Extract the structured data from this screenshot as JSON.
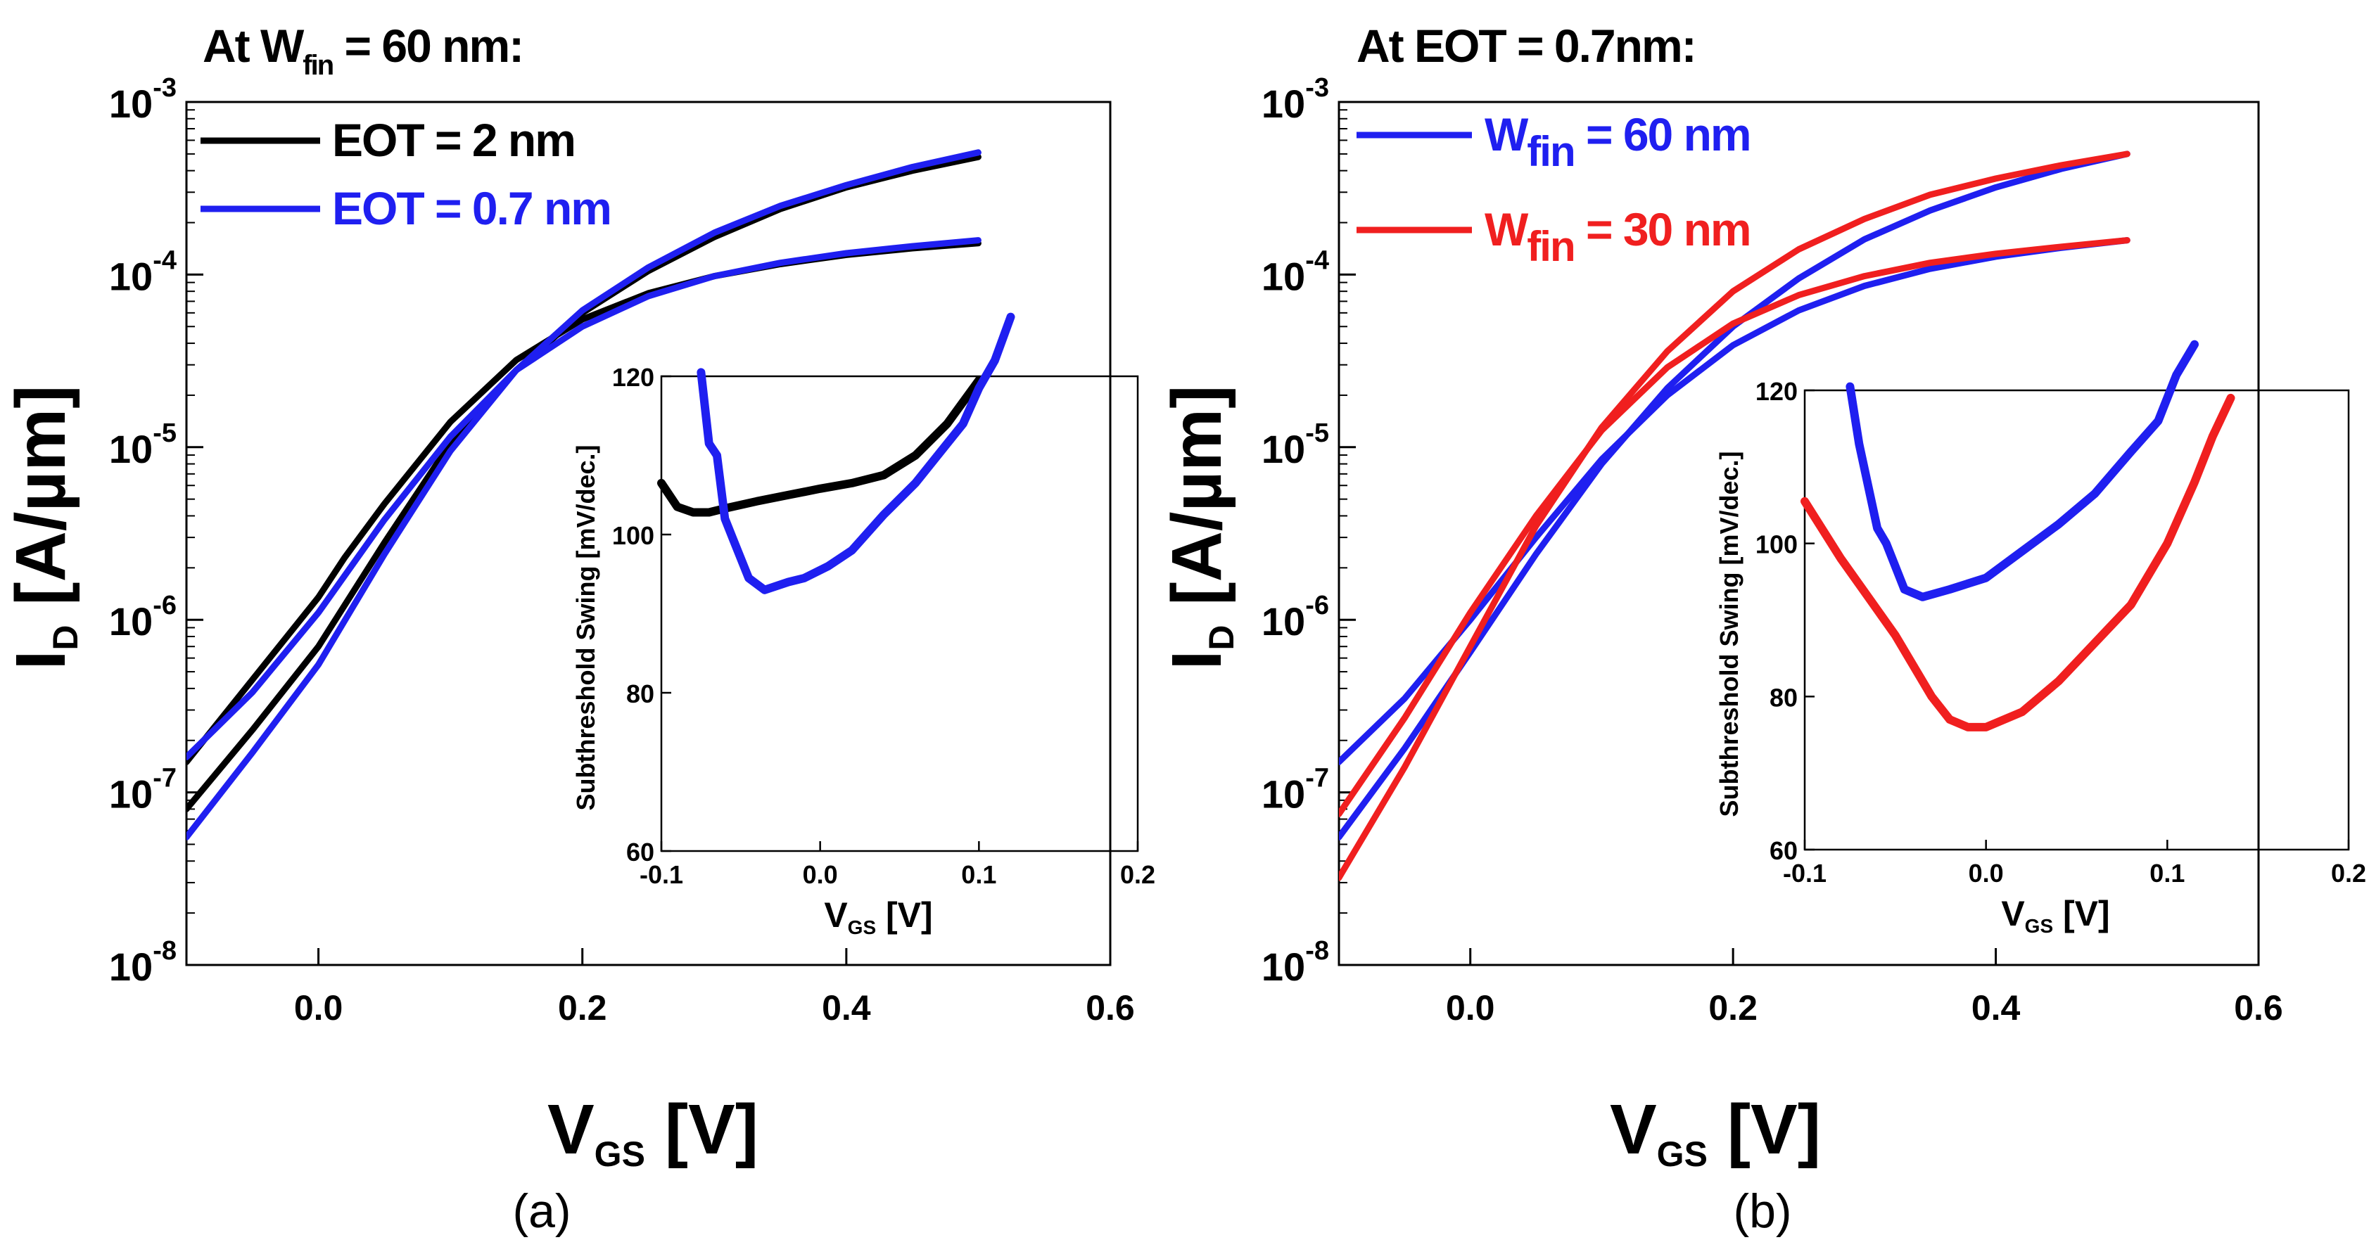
{
  "panels": [
    {
      "caption": "(a)",
      "header": {
        "prefix": "At",
        "var": "W",
        "sub": "fin",
        "rest": "= 60 nm:"
      },
      "chart_data": {
        "type": "line",
        "xlabel": {
          "main": "V",
          "sub": "GS",
          "unit": "[V]"
        },
        "ylabel": {
          "main": "I",
          "sub": "D",
          "unit": "[A/µm]"
        },
        "xlim": [
          -0.1,
          0.6
        ],
        "ylim": [
          1e-08,
          0.001
        ],
        "yscale": "log",
        "xticks": [
          0.0,
          0.2,
          0.4,
          0.6
        ],
        "xtick_labels": [
          "0.0",
          "0.2",
          "0.4",
          "0.6"
        ],
        "yticks": [
          1e-08,
          1e-07,
          1e-06,
          1e-05,
          0.0001,
          0.001
        ],
        "ytick_labels": [
          {
            "base": "10",
            "exp": "-8"
          },
          {
            "base": "10",
            "exp": "-7"
          },
          {
            "base": "10",
            "exp": "-6"
          },
          {
            "base": "10",
            "exp": "-5"
          },
          {
            "base": "10",
            "exp": "-4"
          },
          {
            "base": "10",
            "exp": "-3"
          }
        ],
        "legend_position": "top-left",
        "series": [
          {
            "legend": {
              "main": "EOT = 2 nm",
              "var": "",
              "sub": "",
              "rest": ""
            },
            "color": "#000000",
            "x": [
              -0.1,
              -0.05,
              0,
              0.02,
              0.05,
              0.1,
              0.15,
              0.2,
              0.25,
              0.3,
              0.35,
              0.4,
              0.45,
              0.5
            ],
            "y": [
              1.5e-07,
              4.5e-07,
              1.35e-06,
              2.3e-06,
              4.7e-06,
              1.4e-05,
              3.2e-05,
              5.5e-05,
              7.8e-05,
              9.8e-05,
              0.000115,
              0.00013,
              0.000142,
              0.000152
            ]
          },
          {
            "legend": null,
            "color": "#000000",
            "x": [
              -0.1,
              -0.05,
              0,
              0.05,
              0.1,
              0.15,
              0.2,
              0.25,
              0.3,
              0.35,
              0.4,
              0.45,
              0.5
            ],
            "y": [
              8e-08,
              2.3e-07,
              7e-07,
              2.8e-06,
              1.05e-05,
              2.8e-05,
              6e-05,
              0.000105,
              0.000165,
              0.00024,
              0.00032,
              0.0004,
              0.00048
            ]
          },
          {
            "legend": {
              "main": "EOT = 0.7 nm",
              "var": "",
              "sub": "",
              "rest": ""
            },
            "color": "#1f1ff0",
            "x": [
              -0.1,
              -0.05,
              0,
              0.05,
              0.1,
              0.15,
              0.2,
              0.25,
              0.3,
              0.35,
              0.4,
              0.45,
              0.5
            ],
            "y": [
              1.6e-07,
              3.8e-07,
              1.1e-06,
              3.8e-06,
              1.15e-05,
              2.8e-05,
              5e-05,
              7.5e-05,
              9.8e-05,
              0.000117,
              0.000133,
              0.000146,
              0.000158
            ]
          },
          {
            "legend": null,
            "color": "#1f1ff0",
            "x": [
              -0.1,
              -0.05,
              0,
              0.05,
              0.1,
              0.15,
              0.2,
              0.25,
              0.3,
              0.35,
              0.4,
              0.45,
              0.5
            ],
            "y": [
              5.5e-08,
              1.7e-07,
              5.5e-07,
              2.4e-06,
              9.5e-06,
              2.8e-05,
              6.2e-05,
              0.00011,
              0.000175,
              0.00025,
              0.00033,
              0.00042,
              0.00051
            ]
          }
        ]
      },
      "inset": {
        "chart_data": {
          "type": "line",
          "xlabel": {
            "main": "V",
            "sub": "GS",
            "unit": "[V]"
          },
          "ylabel": "Subthreshold Swing [mV/dec.]",
          "xlim": [
            -0.1,
            0.2
          ],
          "ylim": [
            60,
            120
          ],
          "xticks": [
            -0.1,
            0.0,
            0.1,
            0.2
          ],
          "xtick_labels": [
            "-0.1",
            "0.0",
            "0.1",
            "0.2"
          ],
          "yticks": [
            60,
            80,
            100,
            120
          ],
          "ytick_labels": [
            "60",
            "80",
            "100",
            "120"
          ],
          "series": [
            {
              "color": "#000000",
              "x": [
                -0.1,
                -0.09,
                -0.08,
                -0.07,
                -0.06,
                -0.04,
                -0.02,
                0,
                0.02,
                0.04,
                0.06,
                0.08,
                0.1
              ],
              "y": [
                106.5,
                103.5,
                102.8,
                102.8,
                103.3,
                104.2,
                105,
                105.8,
                106.5,
                107.5,
                110,
                114,
                119.5
              ]
            },
            {
              "color": "#1f1ff0",
              "x": [
                -0.075,
                -0.07,
                -0.065,
                -0.06,
                -0.055,
                -0.045,
                -0.035,
                -0.02,
                -0.01,
                0.005,
                0.02,
                0.04,
                0.06,
                0.08,
                0.09,
                0.1,
                0.11,
                0.12
              ],
              "y": [
                120.5,
                111.5,
                110,
                102,
                99.5,
                94.5,
                93,
                94,
                94.5,
                96,
                98,
                102.5,
                106.5,
                111.5,
                114,
                118.5,
                122,
                127.5
              ]
            }
          ]
        }
      }
    },
    {
      "caption": "(b)",
      "header": {
        "prefix": "At",
        "var": "",
        "sub": "",
        "rest": "EOT = 0.7nm:"
      },
      "chart_data": {
        "type": "line",
        "xlabel": {
          "main": "V",
          "sub": "GS",
          "unit": "[V]"
        },
        "ylabel": {
          "main": "I",
          "sub": "D",
          "unit": "[A/µm]"
        },
        "xlim": [
          -0.1,
          0.6
        ],
        "ylim": [
          1e-08,
          0.001
        ],
        "yscale": "log",
        "xticks": [
          0.0,
          0.2,
          0.4,
          0.6
        ],
        "xtick_labels": [
          "0.0",
          "0.2",
          "0.4",
          "0.6"
        ],
        "yticks": [
          1e-08,
          1e-07,
          1e-06,
          1e-05,
          0.0001,
          0.001
        ],
        "ytick_labels": [
          {
            "base": "10",
            "exp": "-8"
          },
          {
            "base": "10",
            "exp": "-7"
          },
          {
            "base": "10",
            "exp": "-6"
          },
          {
            "base": "10",
            "exp": "-5"
          },
          {
            "base": "10",
            "exp": "-4"
          },
          {
            "base": "10",
            "exp": "-3"
          }
        ],
        "legend_position": "top-left",
        "series": [
          {
            "legend": {
              "main": "",
              "var": "W",
              "sub": "fin",
              "rest": "= 60 nm"
            },
            "color": "#1f1ff0",
            "x": [
              -0.1,
              -0.05,
              0,
              0.05,
              0.1,
              0.15,
              0.2,
              0.25,
              0.3,
              0.35,
              0.4,
              0.45,
              0.5
            ],
            "y": [
              1.5e-07,
              3.5e-07,
              1e-06,
              3e-06,
              8.5e-06,
              2e-05,
              3.9e-05,
              6.2e-05,
              8.6e-05,
              0.000108,
              0.000127,
              0.000143,
              0.000158
            ]
          },
          {
            "legend": null,
            "color": "#1f1ff0",
            "x": [
              -0.1,
              -0.05,
              0,
              0.05,
              0.1,
              0.15,
              0.2,
              0.25,
              0.3,
              0.35,
              0.4,
              0.45,
              0.5
            ],
            "y": [
              5.5e-08,
              1.8e-07,
              6.5e-07,
              2.4e-06,
              8e-06,
              2.2e-05,
              5e-05,
              9.5e-05,
              0.00016,
              0.000235,
              0.00032,
              0.00041,
              0.0005
            ]
          },
          {
            "legend": {
              "main": "",
              "var": "W",
              "sub": "fin",
              "rest": "= 30 nm"
            },
            "color": "#f01f1f",
            "x": [
              -0.1,
              -0.05,
              0,
              0.05,
              0.1,
              0.15,
              0.2,
              0.25,
              0.3,
              0.35,
              0.4,
              0.45,
              0.5
            ],
            "y": [
              7.5e-08,
              2.7e-07,
              1.1e-06,
              4e-06,
              1.25e-05,
              2.9e-05,
              5.2e-05,
              7.6e-05,
              9.8e-05,
              0.000117,
              0.000132,
              0.000145,
              0.000158
            ]
          },
          {
            "legend": null,
            "color": "#f01f1f",
            "x": [
              -0.1,
              -0.05,
              0,
              0.05,
              0.1,
              0.15,
              0.2,
              0.25,
              0.3,
              0.35,
              0.4,
              0.45,
              0.5
            ],
            "y": [
              3.2e-08,
              1.4e-07,
              7e-07,
              3.5e-06,
              1.3e-05,
              3.6e-05,
              8e-05,
              0.00014,
              0.00021,
              0.00029,
              0.00036,
              0.00043,
              0.0005
            ]
          }
        ]
      },
      "inset": {
        "chart_data": {
          "type": "line",
          "xlabel": {
            "main": "V",
            "sub": "GS",
            "unit": "[V]"
          },
          "ylabel": "Subthreshold Swing [mV/dec.]",
          "xlim": [
            -0.1,
            0.2
          ],
          "ylim": [
            60,
            120
          ],
          "xticks": [
            -0.1,
            0.0,
            0.1,
            0.2
          ],
          "xtick_labels": [
            "-0.1",
            "0.0",
            "0.1",
            "0.2"
          ],
          "yticks": [
            60,
            80,
            100,
            120
          ],
          "ytick_labels": [
            "60",
            "80",
            "100",
            "120"
          ],
          "series": [
            {
              "color": "#1f1ff0",
              "x": [
                -0.075,
                -0.07,
                -0.06,
                -0.055,
                -0.045,
                -0.035,
                -0.02,
                0,
                0.02,
                0.04,
                0.06,
                0.08,
                0.095,
                0.105,
                0.115
              ],
              "y": [
                120.5,
                113,
                102,
                100,
                94,
                93,
                94,
                95.5,
                99,
                102.5,
                106.5,
                112,
                116,
                122,
                126
              ]
            },
            {
              "color": "#f01f1f",
              "x": [
                -0.1,
                -0.08,
                -0.065,
                -0.05,
                -0.04,
                -0.03,
                -0.02,
                -0.01,
                0,
                0.02,
                0.04,
                0.06,
                0.08,
                0.1,
                0.115,
                0.125,
                0.135
              ],
              "y": [
                105.5,
                98,
                93,
                88,
                84,
                80,
                77,
                76,
                76,
                78,
                82,
                87,
                92,
                100,
                108,
                114,
                119
              ]
            }
          ]
        }
      }
    }
  ]
}
